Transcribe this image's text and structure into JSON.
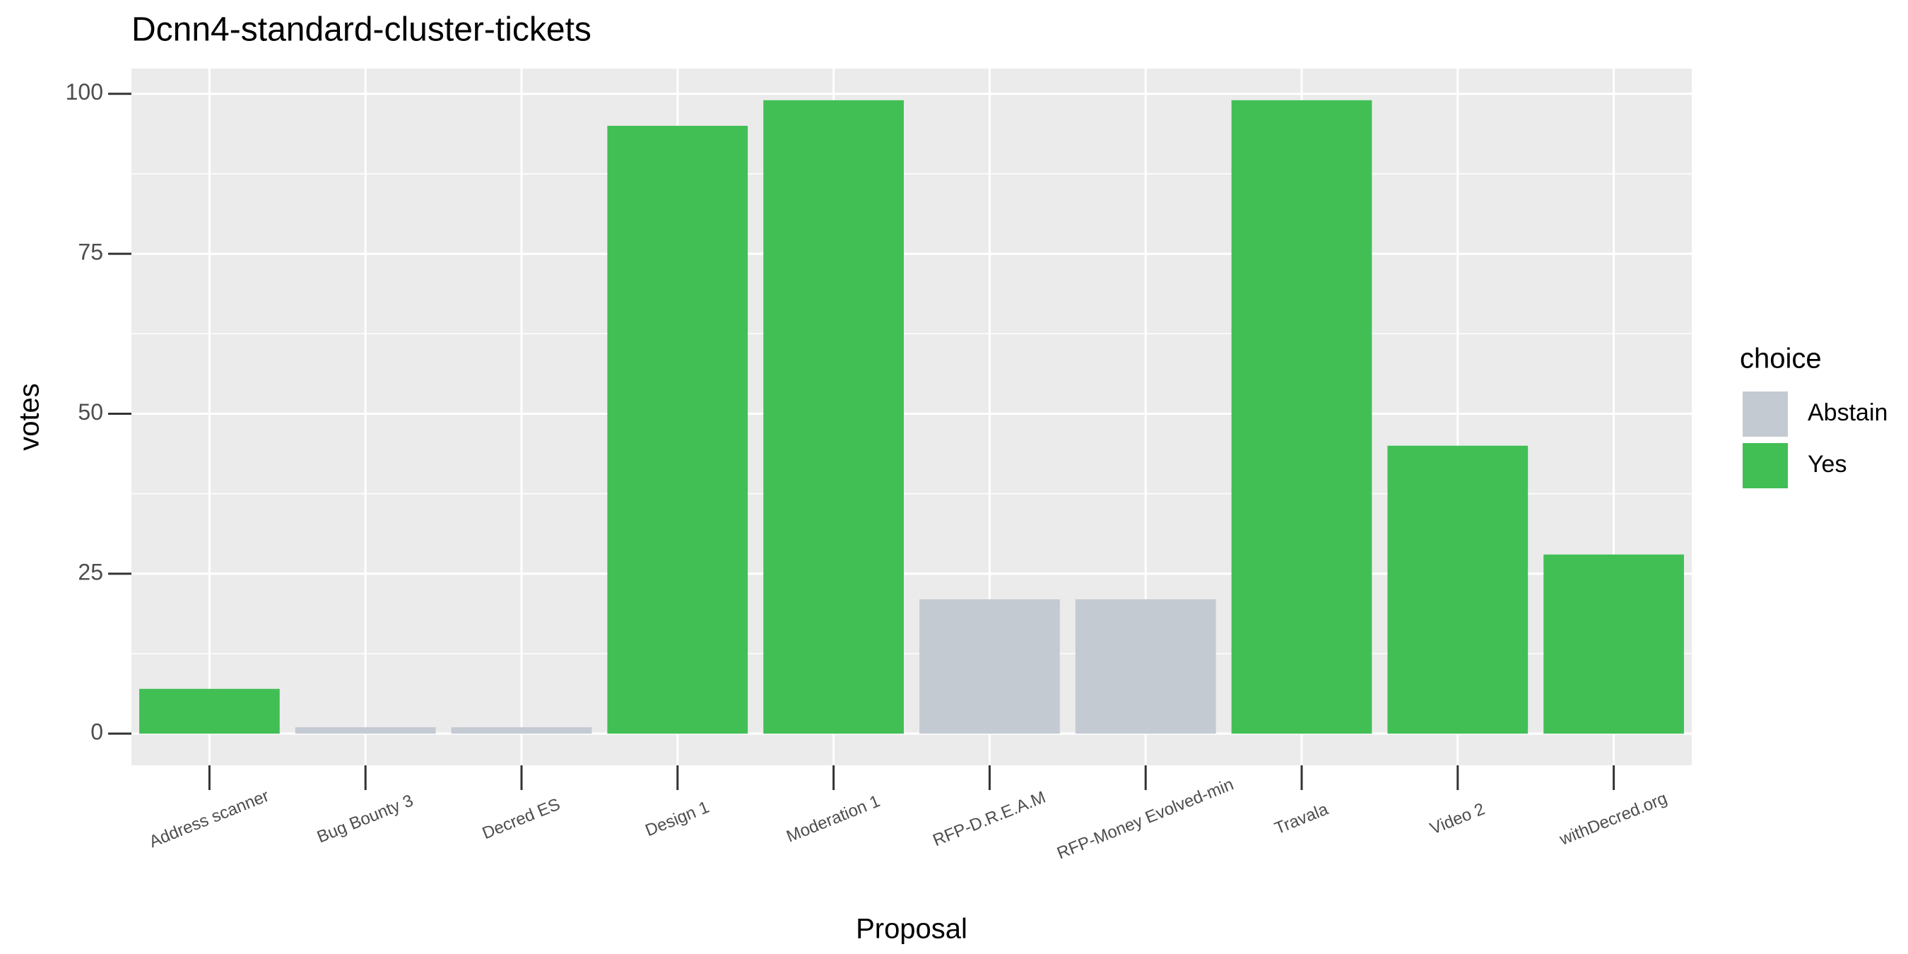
{
  "chart_data": {
    "type": "stacked_bar",
    "title": "Dcnn4-standard-cluster-tickets",
    "x_label": "Proposal",
    "y_label": "votes",
    "legend_title": "choice",
    "legend_position": "right",
    "categories": [
      "Address scanner",
      "Bug Bounty 3",
      "Decred ES",
      "Design 1",
      "Moderation 1",
      "RFP-D.R.E.A.M",
      "RFP-Money Evolved-min",
      "Travala",
      "Video 2",
      "withDecred.org"
    ],
    "series": [
      {
        "name": "Abstain",
        "color": "#c4cad2",
        "values": [
          null,
          1,
          1,
          null,
          null,
          21,
          21,
          null,
          null,
          null
        ]
      },
      {
        "name": "Yes",
        "color": "#41bf55",
        "values": [
          7,
          null,
          null,
          95,
          99,
          null,
          null,
          99,
          45,
          28
        ]
      }
    ],
    "ylim": [
      -4.95,
      103.95
    ],
    "yticks": [
      0,
      25,
      50,
      75,
      100
    ],
    "grid": true
  }
}
